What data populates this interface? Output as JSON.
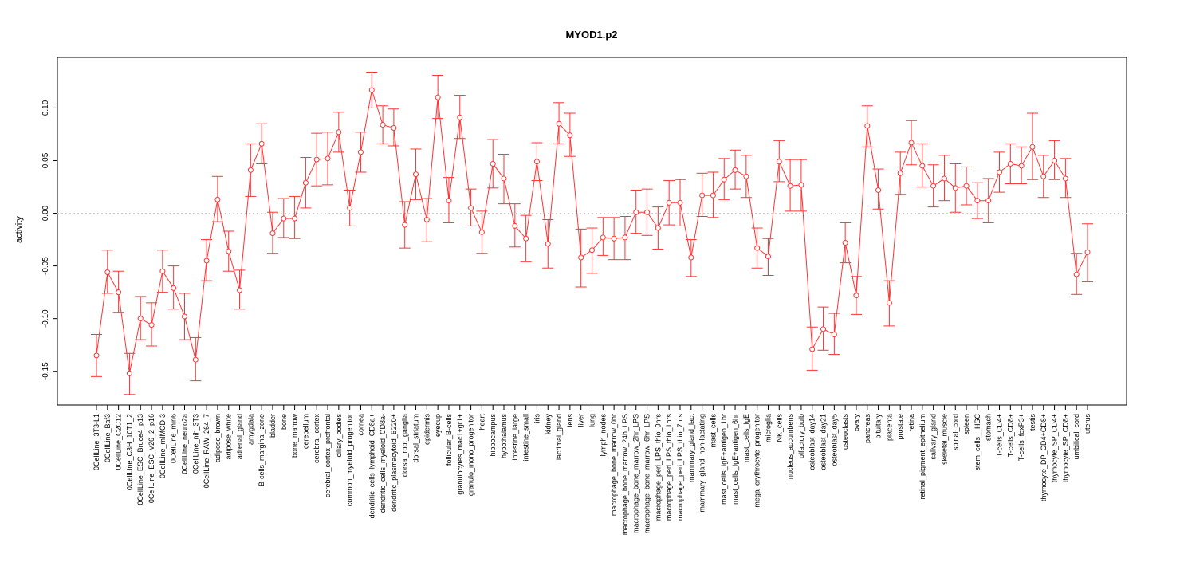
{
  "chart_data": {
    "type": "line",
    "title": "MYOD1.p2",
    "xlabel": "",
    "ylabel": "activity",
    "ylim": [
      -0.182,
      0.148
    ],
    "yticks": [
      -0.15,
      -0.1,
      -0.05,
      0.0,
      0.05,
      0.1
    ],
    "ytick_labels": [
      "-0.15",
      "-0.10",
      "-0.05",
      "0.00",
      "0.05",
      "0.10"
    ],
    "reference_line": 0,
    "grid": false,
    "colors": {
      "series": "#ff3333",
      "reference": "#cccccc",
      "frame": "#000000"
    },
    "categories": [
      "0CellLine_3T3-L1",
      "0CellLine_Baf3",
      "0CellLine_C2C12",
      "0CellLine_C3H_10T1_2",
      "0CellLine_ESC_Bruce4_p13",
      "0CellLine_ESC_V26_2_p16",
      "0CellLine_mIMCD-3",
      "0CellLine_min6",
      "0CellLine_neuro2a",
      "0CellLine_nih_3T3",
      "0CellLine_RAW_264_7",
      "adipose_brown",
      "adipose_white",
      "adrenal_gland",
      "amygdala",
      "B-cells_marginal_zone",
      "bladder",
      "bone",
      "bone_marrow",
      "cerebellum",
      "cerebral_cortex",
      "cerebral_cortex_prefrontal",
      "ciliary_bodies",
      "common_myeloid_progenitor",
      "cornea",
      "dendritic_cells_lymphoid_CD8a+",
      "dendritic_cells_myeloid_CD8a-",
      "dendritic_plasmacytoid_B220+",
      "dorsal_root_ganglia",
      "dorsal_striatum",
      "epidermis",
      "eyecup",
      "follicular_B-cells",
      "granulocytes_mac1+gr1+",
      "granulo_mono_progenitor",
      "heart",
      "hippocampus",
      "hypothalamus",
      "intestine_large",
      "intestine_small",
      "iris",
      "kidney",
      "lacrimal_gland",
      "lens",
      "liver",
      "lung",
      "lymph_nodes",
      "macrophage_bone_marrow_0hr",
      "macrophage_bone_marrow_24h_LPS",
      "macrophage_bone_marrow_2hr_LPS",
      "macrophage_bone_marrow_6hr_LPS",
      "macrophage_peri_LPS_thio_0hrs",
      "macrophage_peri_LPS_thio_1hrs",
      "macrophage_peri_LPS_thio_7hrs",
      "mammary_gland_lact",
      "mammary_gland_non-lactating",
      "mast_cells",
      "mast_cells_IgE+antigen_1hr",
      "mast_cells_IgE+antigen_6hr",
      "mast_cells_IgE",
      "mega_erythrocyte_progenitor",
      "microglia",
      "NK_cells",
      "nucleus_accumbens",
      "olfactory_bulb",
      "osteoblast_day14",
      "osteoblast_day21",
      "osteoblast_day5",
      "osteoclasts",
      "ovary",
      "pancreas",
      "pituitary",
      "placenta",
      "prostate",
      "retina",
      "retinal_pigment_epithelium",
      "salivary_gland",
      "skeletal_muscle",
      "spinal_cord",
      "spleen",
      "stem_cells__HSC",
      "stomach",
      "T-cells_CD4+",
      "T-cells_CD8+",
      "T-cells_foxP3+",
      "testis",
      "thymocyte_DP_CD4+CD8+",
      "thymocyte_SP_CD4+",
      "thymocyte_SP_CD8+",
      "umbilical_cord",
      "uterus"
    ],
    "series": [
      {
        "values": [
          -0.135,
          -0.056,
          -0.075,
          -0.152,
          -0.1,
          -0.106,
          -0.055,
          -0.071,
          -0.098,
          -0.139,
          -0.045,
          0.013,
          -0.036,
          -0.073,
          0.041,
          0.066,
          -0.019,
          -0.005,
          -0.005,
          0.029,
          0.051,
          0.052,
          0.077,
          0.005,
          0.058,
          0.117,
          0.084,
          0.081,
          -0.011,
          0.037,
          -0.006,
          0.11,
          0.012,
          0.091,
          0.005,
          -0.018,
          0.047,
          0.033,
          -0.012,
          -0.024,
          0.049,
          -0.029,
          0.085,
          0.074,
          -0.042,
          -0.035,
          -0.023,
          -0.024,
          -0.023,
          0.001,
          0.001,
          -0.014,
          0.01,
          0.01,
          -0.042,
          0.017,
          0.017,
          0.032,
          0.041,
          0.035,
          -0.033,
          -0.041,
          0.049,
          0.026,
          0.027,
          -0.129,
          -0.11,
          -0.115,
          -0.028,
          -0.078,
          0.083,
          0.022,
          -0.085,
          0.038,
          0.067,
          0.045,
          0.026,
          0.033,
          0.024,
          0.026,
          0.012,
          0.012,
          0.039,
          0.047,
          0.045,
          0.063,
          0.035,
          0.05,
          0.033,
          -0.058,
          -0.037
        ],
        "lower": [
          -0.155,
          -0.076,
          -0.094,
          -0.172,
          -0.12,
          -0.126,
          -0.075,
          -0.091,
          -0.12,
          -0.159,
          -0.064,
          -0.008,
          -0.055,
          -0.091,
          0.016,
          0.047,
          -0.038,
          -0.023,
          -0.024,
          0.005,
          0.026,
          0.027,
          0.058,
          -0.012,
          0.039,
          0.1,
          0.066,
          0.064,
          -0.033,
          0.013,
          -0.027,
          0.09,
          -0.009,
          0.071,
          -0.012,
          -0.038,
          0.024,
          0.009,
          -0.032,
          -0.046,
          0.031,
          -0.052,
          0.066,
          0.054,
          -0.07,
          -0.057,
          -0.04,
          -0.044,
          -0.044,
          -0.019,
          -0.021,
          -0.034,
          -0.011,
          -0.012,
          -0.06,
          -0.003,
          -0.004,
          0.013,
          0.023,
          0.015,
          -0.052,
          -0.059,
          0.03,
          0.002,
          0.002,
          -0.149,
          -0.13,
          -0.134,
          -0.047,
          -0.096,
          0.063,
          0.004,
          -0.107,
          0.018,
          0.046,
          0.025,
          0.006,
          0.012,
          0.001,
          0.008,
          -0.005,
          -0.009,
          0.02,
          0.028,
          0.028,
          0.032,
          0.015,
          0.032,
          0.015,
          -0.077,
          -0.065
        ],
        "upper": [
          -0.115,
          -0.035,
          -0.055,
          -0.133,
          -0.079,
          -0.085,
          -0.035,
          -0.05,
          -0.076,
          -0.118,
          -0.025,
          0.035,
          -0.017,
          -0.054,
          0.066,
          0.085,
          0.001,
          0.014,
          0.016,
          0.053,
          0.076,
          0.077,
          0.096,
          0.022,
          0.077,
          0.134,
          0.102,
          0.099,
          0.011,
          0.061,
          0.014,
          0.131,
          0.034,
          0.112,
          0.023,
          0.002,
          0.07,
          0.056,
          0.009,
          -0.002,
          0.067,
          -0.006,
          0.105,
          0.095,
          -0.015,
          -0.014,
          -0.004,
          -0.004,
          -0.003,
          0.022,
          0.023,
          0.006,
          0.031,
          0.032,
          -0.025,
          0.038,
          0.039,
          0.052,
          0.06,
          0.055,
          -0.014,
          -0.024,
          0.069,
          0.051,
          0.051,
          -0.108,
          -0.089,
          -0.095,
          -0.009,
          -0.06,
          0.102,
          0.042,
          -0.064,
          0.058,
          0.088,
          0.066,
          0.046,
          0.055,
          0.047,
          0.044,
          0.029,
          0.033,
          0.058,
          0.066,
          0.063,
          0.095,
          0.055,
          0.069,
          0.052,
          -0.038,
          -0.01
        ]
      }
    ]
  }
}
